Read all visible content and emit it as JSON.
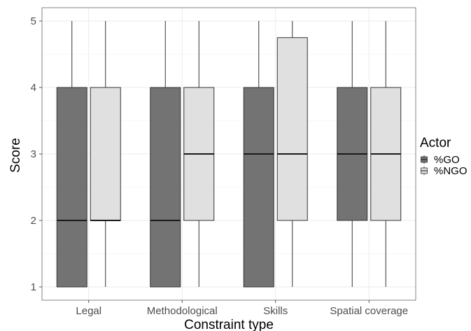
{
  "chart_data": {
    "type": "box",
    "title": "",
    "xlabel": "Constraint type",
    "ylabel": "Score",
    "ylim": [
      0.8,
      5.2
    ],
    "y_ticks": [
      1,
      2,
      3,
      4,
      5
    ],
    "categories": [
      "Legal",
      "Methodological",
      "Skills",
      "Spatial coverage"
    ],
    "grid": true,
    "legend": {
      "title": "Actor",
      "position": "right"
    },
    "series": [
      {
        "name": "%GO",
        "color": "#737373",
        "boxes": [
          {
            "min": 1,
            "q1": 1,
            "median": 2,
            "q3": 4,
            "max": 5
          },
          {
            "min": 1,
            "q1": 1,
            "median": 2,
            "q3": 4,
            "max": 5
          },
          {
            "min": 1,
            "q1": 1,
            "median": 3,
            "q3": 4,
            "max": 5
          },
          {
            "min": 1,
            "q1": 2,
            "median": 3,
            "q3": 4,
            "max": 5
          }
        ]
      },
      {
        "name": "%NGO",
        "color": "#e0e0e0",
        "boxes": [
          {
            "min": 1,
            "q1": 2,
            "median": 2,
            "q3": 4,
            "max": 5
          },
          {
            "min": 1,
            "q1": 2,
            "median": 3,
            "q3": 4,
            "max": 5
          },
          {
            "min": 1,
            "q1": 2,
            "median": 3,
            "q3": 4.75,
            "max": 5
          },
          {
            "min": 1,
            "q1": 2,
            "median": 3,
            "q3": 4,
            "max": 5
          }
        ]
      }
    ]
  }
}
